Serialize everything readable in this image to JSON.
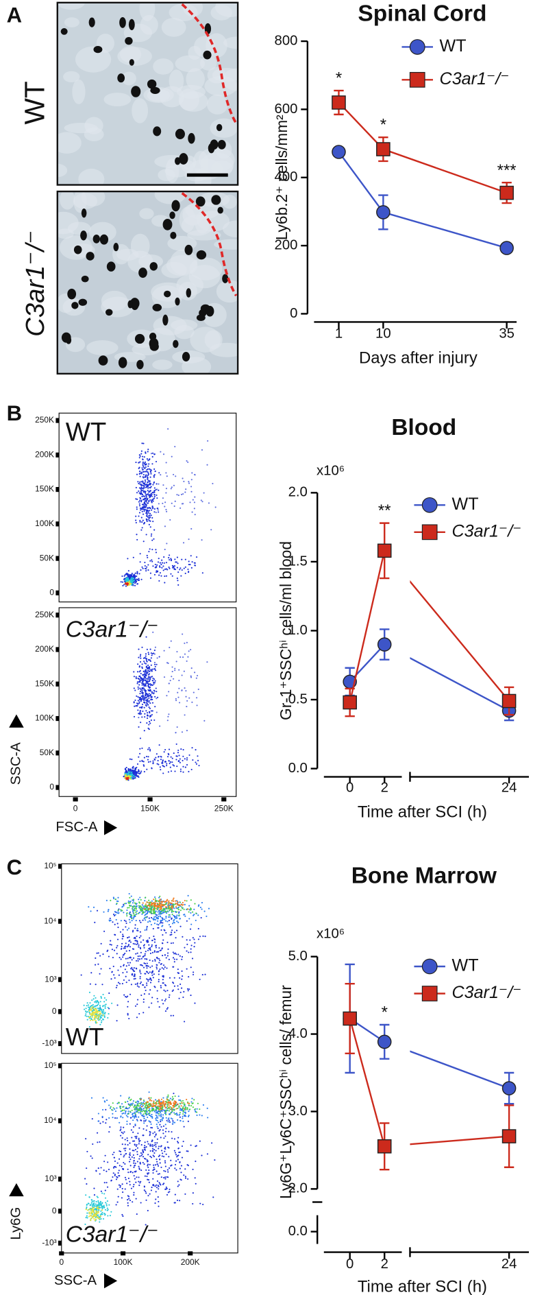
{
  "panel_labels": [
    "A",
    "B",
    "C"
  ],
  "micrographs": [
    {
      "label": "WT"
    },
    {
      "label": "C3ar1⁻/⁻"
    }
  ],
  "blood_flow": {
    "labels": [
      "WT",
      "C3ar1⁻/⁻"
    ],
    "yticks": [
      "250K",
      "200K",
      "150K",
      "100K",
      "50K",
      "0"
    ],
    "xticks": [
      "0",
      "150K",
      "250K"
    ],
    "ylabel": "SSC-A",
    "xlabel": "FSC-A"
  },
  "marrow_flow": {
    "labels": [
      "WT",
      "C3ar1⁻/⁻"
    ],
    "yticks": [
      "10⁵",
      "10⁴",
      "10³",
      "0",
      "-10³"
    ],
    "xticks": [
      "0",
      "100K",
      "200K"
    ],
    "ylabel": "Ly6G",
    "xlabel": "SSC-A"
  },
  "chart_data": [
    {
      "type": "line",
      "title": "Spinal Cord",
      "ylabel": "Ly6b.2⁺ cells/mm²",
      "xlabel": "Days after injury",
      "x": [
        1,
        10,
        35
      ],
      "xlim": [
        -4,
        37
      ],
      "xticks": [
        1,
        10,
        35
      ],
      "ylim": [
        0,
        800
      ],
      "yticks": [
        0,
        200,
        400,
        600,
        800
      ],
      "series": [
        {
          "name": "WT",
          "color": "#3d55c8",
          "marker": "circle",
          "values": [
            475,
            298,
            193
          ],
          "errors": [
            10,
            50,
            8
          ]
        },
        {
          "name": "C3ar1⁻/⁻",
          "color": "#cc2a1c",
          "marker": "square",
          "values": [
            620,
            483,
            355
          ],
          "errors": [
            35,
            35,
            30
          ]
        }
      ],
      "annotations": [
        {
          "x": 1,
          "text": "*"
        },
        {
          "x": 10,
          "text": "*"
        },
        {
          "x": 35,
          "text": "***"
        }
      ]
    },
    {
      "type": "line",
      "title": "Blood",
      "ylabel": "Gr-1⁺SSCʰⁱ cells/ml blood",
      "xlabel": "Time after SCI (h)",
      "scale_label": "x10⁶",
      "x": [
        0,
        2,
        24
      ],
      "xlim": [
        -1.5,
        24.6
      ],
      "x_break": [
        3,
        21
      ],
      "xticks": [
        0,
        2,
        24
      ],
      "ylim": [
        0,
        2
      ],
      "yticks": [
        {
          "value": 0,
          "label": "0.0"
        },
        0.5,
        {
          "value": 1,
          "label": "1.0"
        },
        1.5,
        {
          "value": 2,
          "label": "2.0"
        }
      ],
      "series": [
        {
          "name": "WT",
          "color": "#3d55c8",
          "marker": "circle",
          "values": [
            0.63,
            0.9,
            0.42
          ],
          "errors": [
            0.1,
            0.11,
            0.07
          ]
        },
        {
          "name": "C3ar1⁻/⁻",
          "color": "#cc2a1c",
          "marker": "square",
          "values": [
            0.48,
            1.58,
            0.49
          ],
          "errors": [
            0.1,
            0.2,
            0.1
          ]
        }
      ],
      "annotations": [
        {
          "x": 2,
          "text": "**"
        }
      ]
    },
    {
      "type": "line",
      "title": "Bone Marrow",
      "ylabel": "Ly6G⁺Ly6C⁺SSCʰⁱ cells/ femur",
      "xlabel": "Time after SCI (h)",
      "scale_label": "x10⁶",
      "x": [
        0,
        2,
        24
      ],
      "xlim": [
        -1.5,
        24.6
      ],
      "x_break": [
        3,
        21
      ],
      "xticks": [
        0,
        2,
        24
      ],
      "ylim": [
        -0.3,
        5
      ],
      "y_break": [
        0.4,
        2
      ],
      "yticks": [
        {
          "value": 0,
          "label": "0.0"
        },
        {
          "value": 2,
          "label": "2.0"
        },
        {
          "value": 3,
          "label": "3.0"
        },
        {
          "value": 4,
          "label": "4.0"
        },
        {
          "value": 5,
          "label": "5.0"
        }
      ],
      "series": [
        {
          "name": "WT",
          "color": "#3d55c8",
          "marker": "circle",
          "values": [
            4.2,
            3.9,
            3.3
          ],
          "errors": [
            0.7,
            0.22,
            0.2
          ]
        },
        {
          "name": "C3ar1⁻/⁻",
          "color": "#cc2a1c",
          "marker": "square",
          "values": [
            4.2,
            2.55,
            2.68
          ],
          "errors": [
            0.45,
            0.3,
            0.4
          ]
        }
      ],
      "annotations": [
        {
          "x": 2,
          "text": "*"
        }
      ]
    }
  ]
}
